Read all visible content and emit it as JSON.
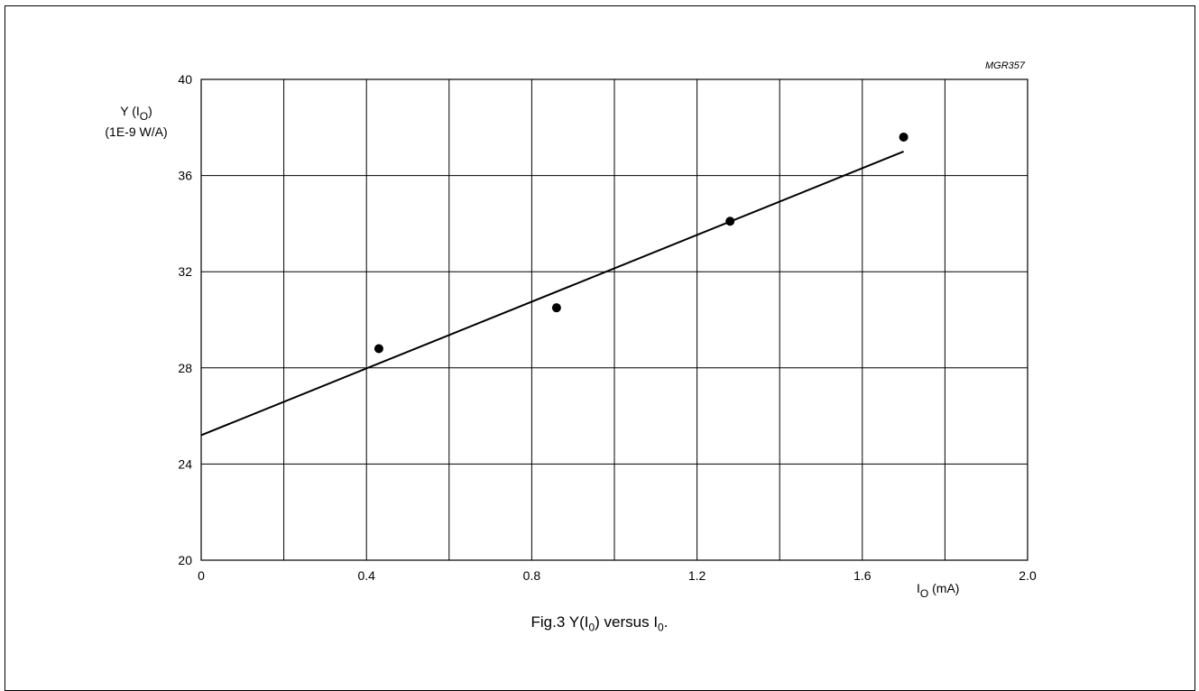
{
  "chart_data": {
    "type": "scatter",
    "figure_code": "MGR357",
    "ylabel": {
      "main": "Y (I",
      "sub": "O",
      "close": ")",
      "unit": "(1E-9 W/A)"
    },
    "xlabel": {
      "main": "I",
      "sub": "O",
      "unit": " (mA)"
    },
    "xlim": [
      0,
      2.0
    ],
    "ylim": [
      20,
      40
    ],
    "x_ticks": [
      "0",
      "0.4",
      "0.8",
      "1.2",
      "1.6",
      "2.0"
    ],
    "y_ticks": [
      "20",
      "24",
      "28",
      "32",
      "36",
      "40"
    ],
    "x_grid_step": 0.2,
    "y_grid_step": 4,
    "grid": true,
    "points": [
      {
        "x": 0.43,
        "y": 28.8
      },
      {
        "x": 0.86,
        "y": 30.5
      },
      {
        "x": 1.28,
        "y": 34.1
      },
      {
        "x": 1.7,
        "y": 37.6
      }
    ],
    "fit_line": {
      "x": [
        0,
        1.7
      ],
      "y": [
        25.2,
        37.0
      ]
    }
  },
  "caption": {
    "a": "Fig.3  Y(I",
    "a_sub": "0",
    "b": ") versus I",
    "b_sub": "0",
    "c": "."
  }
}
